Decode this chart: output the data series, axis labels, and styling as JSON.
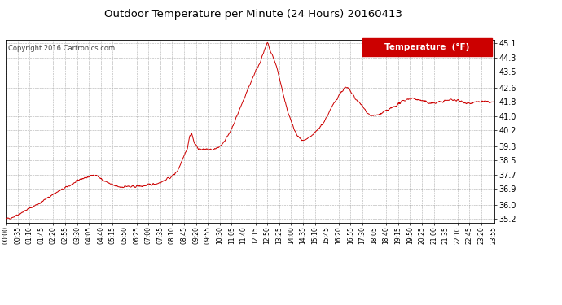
{
  "title": "Outdoor Temperature per Minute (24 Hours) 20160413",
  "copyright": "Copyright 2016 Cartronics.com",
  "legend_label": "Temperature  (°F)",
  "line_color": "#cc0000",
  "background_color": "#ffffff",
  "plot_bg_color": "#ffffff",
  "grid_color": "#999999",
  "yticks": [
    35.2,
    36.0,
    36.9,
    37.7,
    38.5,
    39.3,
    40.2,
    41.0,
    41.8,
    42.6,
    43.5,
    44.3,
    45.1
  ],
  "ylim": [
    35.0,
    45.3
  ],
  "num_minutes": 1440,
  "xtick_step": 35,
  "xtick_labels": [
    "00:00",
    "00:35",
    "01:10",
    "01:45",
    "02:20",
    "02:55",
    "03:30",
    "04:05",
    "04:40",
    "05:15",
    "05:50",
    "06:25",
    "07:00",
    "07:35",
    "08:10",
    "08:45",
    "09:20",
    "09:55",
    "10:30",
    "11:05",
    "11:40",
    "12:15",
    "12:50",
    "13:25",
    "14:00",
    "14:35",
    "15:10",
    "15:45",
    "16:20",
    "16:55",
    "17:30",
    "18:05",
    "18:40",
    "19:15",
    "19:50",
    "20:25",
    "21:00",
    "21:35",
    "22:10",
    "22:45",
    "23:20",
    "23:55"
  ],
  "control_points": [
    [
      0,
      35.2
    ],
    [
      20,
      35.3
    ],
    [
      40,
      35.5
    ],
    [
      60,
      35.7
    ],
    [
      80,
      35.9
    ],
    [
      100,
      36.1
    ],
    [
      120,
      36.35
    ],
    [
      140,
      36.6
    ],
    [
      160,
      36.8
    ],
    [
      180,
      37.0
    ],
    [
      200,
      37.2
    ],
    [
      220,
      37.45
    ],
    [
      240,
      37.55
    ],
    [
      255,
      37.65
    ],
    [
      265,
      37.7
    ],
    [
      275,
      37.55
    ],
    [
      285,
      37.4
    ],
    [
      295,
      37.3
    ],
    [
      310,
      37.15
    ],
    [
      325,
      37.05
    ],
    [
      340,
      37.0
    ],
    [
      355,
      37.05
    ],
    [
      370,
      37.0
    ],
    [
      385,
      37.05
    ],
    [
      400,
      37.05
    ],
    [
      415,
      37.1
    ],
    [
      430,
      37.15
    ],
    [
      445,
      37.2
    ],
    [
      460,
      37.3
    ],
    [
      475,
      37.45
    ],
    [
      490,
      37.6
    ],
    [
      505,
      37.9
    ],
    [
      515,
      38.3
    ],
    [
      525,
      38.8
    ],
    [
      535,
      39.2
    ],
    [
      542,
      39.9
    ],
    [
      548,
      40.0
    ],
    [
      555,
      39.5
    ],
    [
      562,
      39.3
    ],
    [
      570,
      39.15
    ],
    [
      580,
      39.1
    ],
    [
      590,
      39.15
    ],
    [
      600,
      39.1
    ],
    [
      612,
      39.1
    ],
    [
      625,
      39.2
    ],
    [
      640,
      39.5
    ],
    [
      655,
      39.9
    ],
    [
      670,
      40.5
    ],
    [
      685,
      41.2
    ],
    [
      700,
      41.9
    ],
    [
      715,
      42.6
    ],
    [
      728,
      43.2
    ],
    [
      738,
      43.6
    ],
    [
      748,
      44.0
    ],
    [
      756,
      44.4
    ],
    [
      762,
      44.7
    ],
    [
      767,
      44.95
    ],
    [
      770,
      45.1
    ],
    [
      773,
      45.05
    ],
    [
      776,
      44.85
    ],
    [
      780,
      44.6
    ],
    [
      785,
      44.4
    ],
    [
      792,
      44.1
    ],
    [
      800,
      43.6
    ],
    [
      810,
      42.8
    ],
    [
      822,
      41.8
    ],
    [
      835,
      41.0
    ],
    [
      848,
      40.3
    ],
    [
      858,
      39.9
    ],
    [
      868,
      39.7
    ],
    [
      878,
      39.6
    ],
    [
      885,
      39.65
    ],
    [
      895,
      39.8
    ],
    [
      908,
      40.0
    ],
    [
      922,
      40.3
    ],
    [
      938,
      40.7
    ],
    [
      952,
      41.2
    ],
    [
      966,
      41.7
    ],
    [
      980,
      42.15
    ],
    [
      992,
      42.45
    ],
    [
      1000,
      42.6
    ],
    [
      1008,
      42.55
    ],
    [
      1018,
      42.3
    ],
    [
      1028,
      42.0
    ],
    [
      1038,
      41.8
    ],
    [
      1050,
      41.55
    ],
    [
      1062,
      41.25
    ],
    [
      1072,
      41.05
    ],
    [
      1082,
      41.0
    ],
    [
      1092,
      41.05
    ],
    [
      1102,
      41.1
    ],
    [
      1112,
      41.2
    ],
    [
      1122,
      41.3
    ],
    [
      1132,
      41.4
    ],
    [
      1145,
      41.55
    ],
    [
      1158,
      41.7
    ],
    [
      1170,
      41.85
    ],
    [
      1182,
      41.95
    ],
    [
      1195,
      42.0
    ],
    [
      1208,
      41.95
    ],
    [
      1220,
      41.88
    ],
    [
      1232,
      41.82
    ],
    [
      1244,
      41.75
    ],
    [
      1256,
      41.72
    ],
    [
      1268,
      41.75
    ],
    [
      1280,
      41.8
    ],
    [
      1292,
      41.85
    ],
    [
      1305,
      41.9
    ],
    [
      1318,
      41.92
    ],
    [
      1330,
      41.88
    ],
    [
      1342,
      41.82
    ],
    [
      1355,
      41.75
    ],
    [
      1368,
      41.72
    ],
    [
      1380,
      41.75
    ],
    [
      1392,
      41.8
    ],
    [
      1405,
      41.82
    ],
    [
      1415,
      41.8
    ],
    [
      1425,
      41.78
    ],
    [
      1435,
      41.78
    ],
    [
      1439,
      41.78
    ]
  ]
}
